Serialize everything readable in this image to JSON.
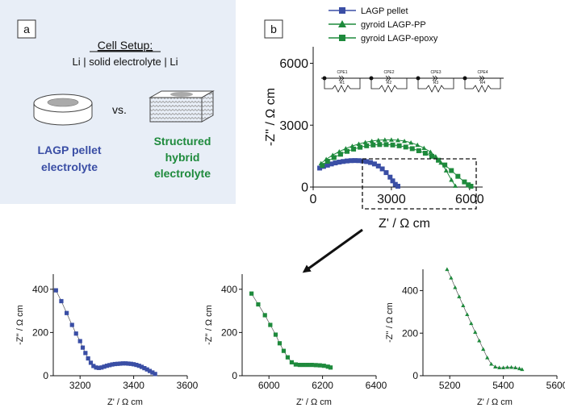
{
  "colors": {
    "blue": "#3a4ea5",
    "green": "#1e8a3c",
    "panel_bg": "#e8eef7",
    "axis": "#111111"
  },
  "panel_a": {
    "label": "a",
    "title": "Cell Setup:",
    "setup": "Li | solid electrolyte | Li",
    "vs": "vs.",
    "pellet_line1": "LAGP pellet",
    "pellet_line2": "electrolyte",
    "hybrid_line1": "Structured",
    "hybrid_line2": "hybrid",
    "hybrid_line3": "electrolyte"
  },
  "panel_b": {
    "label": "b",
    "legend": [
      "LAGP pellet",
      "gyroid LAGP-PP",
      "gyroid LAGP-epoxy"
    ],
    "circuit_labels": [
      "CPE1",
      "CPE2",
      "CPE3",
      "CPE4",
      "R1",
      "R2",
      "R3",
      "R4"
    ]
  },
  "chart_data": [
    {
      "type": "scatter",
      "xlabel": "Z' / Ω cm",
      "ylabel": "-Z'' / Ω cm",
      "xlim": [
        0,
        6500
      ],
      "ylim": [
        0,
        6800
      ],
      "xticks": [
        0,
        3000,
        6000
      ],
      "yticks": [
        0,
        3000,
        6000
      ],
      "series": [
        {
          "name": "LAGP pellet",
          "marker": "square",
          "color": "#3a4ea5",
          "x": [
            250,
            400,
            550,
            700,
            850,
            1000,
            1150,
            1300,
            1450,
            1600,
            1750,
            1900,
            2050,
            2200,
            2350,
            2500,
            2650,
            2800,
            2950,
            3050,
            3150,
            3250
          ],
          "y": [
            920,
            1000,
            1060,
            1120,
            1170,
            1210,
            1240,
            1265,
            1280,
            1285,
            1280,
            1265,
            1235,
            1190,
            1120,
            1020,
            880,
            700,
            480,
            300,
            130,
            40
          ]
        },
        {
          "name": "gyroid LAGP-PP",
          "marker": "triangle",
          "color": "#1e8a3c",
          "x": [
            300,
            500,
            750,
            1000,
            1250,
            1500,
            1750,
            2000,
            2250,
            2500,
            2750,
            3000,
            3250,
            3500,
            3750,
            4000,
            4250,
            4500,
            4700,
            4900,
            5100,
            5300,
            5450
          ],
          "y": [
            1150,
            1350,
            1550,
            1720,
            1870,
            1990,
            2090,
            2170,
            2230,
            2270,
            2290,
            2290,
            2270,
            2230,
            2150,
            2040,
            1890,
            1700,
            1480,
            1180,
            800,
            350,
            60
          ]
        },
        {
          "name": "gyroid LAGP-epoxy",
          "marker": "square",
          "color": "#1e8a3c",
          "x": [
            350,
            550,
            800,
            1050,
            1300,
            1550,
            1800,
            2050,
            2300,
            2550,
            2800,
            3050,
            3300,
            3550,
            3800,
            4050,
            4300,
            4550,
            4800,
            5050,
            5300,
            5550,
            5800,
            5950,
            6050
          ],
          "y": [
            1050,
            1250,
            1430,
            1590,
            1730,
            1840,
            1930,
            2000,
            2040,
            2060,
            2060,
            2040,
            2000,
            1940,
            1860,
            1760,
            1640,
            1490,
            1300,
            1070,
            800,
            520,
            250,
            110,
            40
          ]
        }
      ]
    },
    {
      "type": "scatter",
      "xlabel": "Z' / Ω cm",
      "ylabel": "-Z'' / Ω cm",
      "xlim": [
        3100,
        3600
      ],
      "ylim": [
        0,
        470
      ],
      "xticks": [
        3200,
        3400,
        3600
      ],
      "yticks": [
        0,
        200,
        400
      ],
      "series": [
        {
          "name": "LAGP pellet",
          "marker": "square",
          "color": "#3a4ea5",
          "x": [
            3110,
            3130,
            3150,
            3170,
            3185,
            3200,
            3210,
            3220,
            3230,
            3240,
            3250,
            3260,
            3270,
            3280,
            3290,
            3300,
            3310,
            3320,
            3330,
            3340,
            3350,
            3360,
            3370,
            3380,
            3390,
            3400,
            3410,
            3420,
            3430,
            3440,
            3450,
            3460,
            3470,
            3480
          ],
          "y": [
            395,
            345,
            290,
            235,
            195,
            160,
            130,
            105,
            80,
            60,
            45,
            38,
            36,
            38,
            42,
            46,
            49,
            52,
            54,
            55,
            56,
            57,
            57,
            56,
            55,
            53,
            50,
            46,
            41,
            35,
            29,
            22,
            15,
            8
          ]
        }
      ]
    },
    {
      "type": "scatter",
      "xlabel": "Z' / Ω cm",
      "ylabel": "-Z'' / Ω cm",
      "xlim": [
        5900,
        6400
      ],
      "ylim": [
        0,
        470
      ],
      "xticks": [
        6000,
        6200,
        6400
      ],
      "yticks": [
        0,
        200,
        400
      ],
      "series": [
        {
          "name": "gyroid LAGP-epoxy",
          "marker": "square",
          "color": "#1e8a3c",
          "x": [
            5935,
            5960,
            5985,
            6005,
            6025,
            6040,
            6055,
            6070,
            6085,
            6100,
            6115,
            6130,
            6145,
            6160,
            6175,
            6190,
            6205,
            6220,
            6230
          ],
          "y": [
            380,
            330,
            280,
            235,
            190,
            150,
            115,
            85,
            62,
            52,
            50,
            50,
            50,
            50,
            49,
            48,
            46,
            42,
            38
          ]
        }
      ]
    },
    {
      "type": "scatter",
      "xlabel": "Z' / Ω cm",
      "ylabel": "-Z'' / Ω cm",
      "xlim": [
        5100,
        5600
      ],
      "ylim": [
        0,
        500
      ],
      "xticks": [
        5200,
        5400,
        5600
      ],
      "yticks": [
        0,
        200,
        400
      ],
      "series": [
        {
          "name": "gyroid LAGP-PP",
          "marker": "triangle",
          "color": "#1e8a3c",
          "x": [
            5190,
            5205,
            5220,
            5235,
            5250,
            5265,
            5280,
            5295,
            5310,
            5325,
            5340,
            5355,
            5370,
            5385,
            5400,
            5415,
            5430,
            5445,
            5460,
            5470
          ],
          "y": [
            500,
            460,
            415,
            372,
            330,
            288,
            246,
            205,
            165,
            125,
            85,
            55,
            42,
            38,
            38,
            40,
            40,
            38,
            34,
            30
          ]
        }
      ]
    }
  ]
}
